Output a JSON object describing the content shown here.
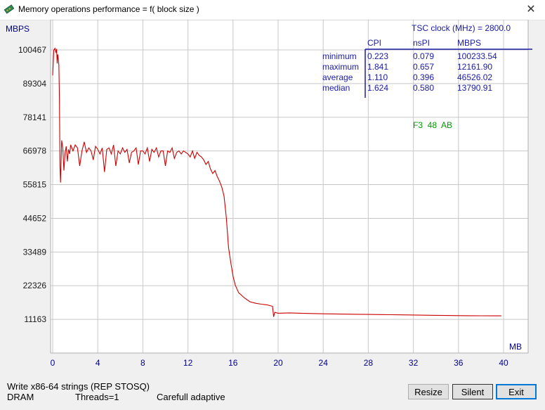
{
  "window": {
    "title": "Memory operations performance = f( block size )",
    "close_glyph": "✕"
  },
  "colors": {
    "line": "#cc0000",
    "axis_text": "#00008b",
    "table_text": "#1a1aa6",
    "status_green": "#009900",
    "grid": "#c8c8c8",
    "plot_bg": "#ffffff"
  },
  "chart_data": {
    "type": "line",
    "ylabel": "MBPS",
    "xlabel": "MB",
    "x_ticks": [
      0,
      4,
      8,
      12,
      16,
      20,
      24,
      28,
      32,
      36,
      40
    ],
    "y_ticks": [
      11163,
      22326,
      33489,
      44652,
      55815,
      66978,
      78141,
      89304,
      100467
    ],
    "xlim": [
      0,
      42
    ],
    "ylim": [
      0,
      106000
    ],
    "grid": true,
    "series": [
      {
        "x": [
          0.0,
          0.1,
          0.2,
          0.3,
          0.35,
          0.4,
          0.45,
          0.5,
          0.55,
          0.6,
          0.65,
          0.7,
          0.8,
          0.9,
          1.0,
          1.1,
          1.2,
          1.3,
          1.4,
          1.5,
          1.6,
          1.8,
          2.0,
          2.2,
          2.4,
          2.6,
          2.8,
          3.0,
          3.2,
          3.4,
          3.6,
          3.8,
          4.0,
          4.2,
          4.4,
          4.6,
          4.8,
          5.0,
          5.2,
          5.4,
          5.6,
          5.8,
          6.0,
          6.2,
          6.4,
          6.6,
          6.8,
          7.0,
          7.2,
          7.4,
          7.6,
          7.8,
          8.0,
          8.2,
          8.4,
          8.6,
          8.8,
          9.0,
          9.2,
          9.4,
          9.6,
          9.8,
          10.0,
          10.2,
          10.4,
          10.6,
          10.8,
          11.0,
          11.2,
          11.4,
          11.6,
          11.8,
          12.0,
          12.2,
          12.4,
          12.6,
          12.8,
          13.0,
          13.2,
          13.4,
          13.6,
          13.8,
          14.0,
          14.2,
          14.4,
          14.6,
          14.8,
          15.0,
          15.2,
          15.4,
          15.6,
          15.8,
          16.0,
          16.2,
          16.5,
          17.0,
          17.5,
          18.0,
          18.5,
          19.0,
          19.5,
          19.6,
          19.7,
          20.0,
          21.0,
          22.0,
          23.0,
          24.0,
          25.0,
          26.0,
          27.0,
          28.0,
          29.0,
          30.0,
          31.0,
          32.0,
          33.0,
          34.0,
          35.0,
          36.0,
          37.0,
          38.0,
          39.0,
          39.8
        ],
        "y": [
          92000,
          100467,
          101000,
          99500,
          100800,
          96000,
          99000,
          97500,
          95500,
          85000,
          62000,
          56500,
          70500,
          68000,
          60500,
          66500,
          68500,
          63500,
          67500,
          66000,
          69000,
          67000,
          69000,
          68000,
          62000,
          67000,
          70000,
          66500,
          68000,
          67000,
          64000,
          68500,
          67500,
          66000,
          68000,
          60000,
          67500,
          68000,
          66000,
          69000,
          62000,
          67000,
          66000,
          68000,
          66500,
          67500,
          63000,
          66500,
          67000,
          68000,
          62500,
          67000,
          67000,
          66000,
          68000,
          63500,
          67500,
          66500,
          68000,
          65000,
          67000,
          67000,
          62000,
          67000,
          66500,
          68000,
          64500,
          66500,
          67000,
          66000,
          67000,
          66500,
          66000,
          65000,
          67000,
          64500,
          66500,
          65500,
          65000,
          64000,
          62500,
          63500,
          61000,
          59500,
          60500,
          58500,
          57000,
          55000,
          52000,
          45000,
          35000,
          30000,
          25500,
          22500,
          20000,
          18300,
          17000,
          16500,
          16200,
          16000,
          15500,
          12000,
          13500,
          13200,
          13300,
          13200,
          13100,
          13000,
          12950,
          12900,
          12850,
          12800,
          12750,
          12700,
          12650,
          12600,
          12550,
          12500,
          12450,
          12400,
          12380,
          12350,
          12330,
          12320
        ]
      }
    ],
    "table": {
      "clock_label": "TSC clock (MHz) = 2800.0",
      "headers": [
        "CPI",
        "nsPI",
        "MBPS"
      ],
      "rows": [
        {
          "label": "minimum",
          "cpi": "0.223",
          "nspi": "0.079",
          "mbps": "100233.54"
        },
        {
          "label": "maximum",
          "cpi": "1.841",
          "nspi": "0.657",
          "mbps": "12161.90"
        },
        {
          "label": "average",
          "cpi": "1.110",
          "nspi": "0.396",
          "mbps": "46526.02"
        },
        {
          "label": "median",
          "cpi": "1.624",
          "nspi": "0.580",
          "mbps": "13790.91"
        }
      ],
      "status_code": "F3  48  AB"
    }
  },
  "status": {
    "operation": "Write x86-64 strings (REP STOSQ)",
    "memory": "DRAM",
    "threads": "Threads=1",
    "mode": "Carefull adaptive"
  },
  "buttons": {
    "resize": "Resize",
    "silent": "Silent",
    "exit": "Exit"
  }
}
